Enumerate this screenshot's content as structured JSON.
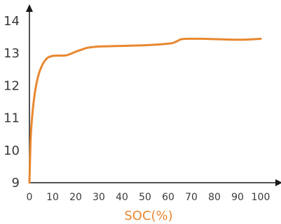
{
  "chart_data": {
    "type": "line",
    "xlabel": "SOC(%)",
    "ylabel": "",
    "xlim": [
      0,
      100
    ],
    "ylim": [
      9,
      14
    ],
    "xticks": [
      0,
      10,
      20,
      30,
      40,
      50,
      60,
      70,
      80,
      90,
      100
    ],
    "yticks": [
      9,
      10,
      11,
      12,
      13,
      14
    ],
    "grid": false,
    "legend": "none",
    "colors": {
      "line": "#e8872f",
      "axis": "#1a1a1a",
      "xlabel": "#e8872f"
    },
    "series": [
      {
        "x": [
          0,
          0.5,
          1,
          2,
          3,
          4,
          5,
          6,
          7,
          8,
          10,
          12,
          14,
          16,
          18,
          20,
          22,
          25,
          28,
          30,
          35,
          40,
          45,
          50,
          55,
          60,
          62,
          63,
          64,
          65,
          66,
          68,
          70,
          75,
          80,
          85,
          90,
          95,
          100
        ],
        "y": [
          9.0,
          10.3,
          10.9,
          11.6,
          12.05,
          12.35,
          12.55,
          12.7,
          12.8,
          12.87,
          12.92,
          12.93,
          12.93,
          12.94,
          12.99,
          13.05,
          13.1,
          13.17,
          13.2,
          13.21,
          13.22,
          13.23,
          13.24,
          13.25,
          13.27,
          13.3,
          13.32,
          13.35,
          13.38,
          13.42,
          13.44,
          13.45,
          13.45,
          13.45,
          13.44,
          13.43,
          13.42,
          13.43,
          13.45
        ]
      }
    ]
  }
}
